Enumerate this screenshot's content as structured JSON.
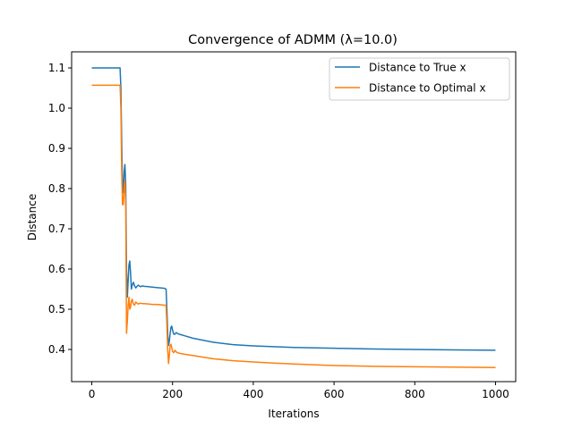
{
  "chart_data": {
    "type": "line",
    "title": "Convergence of ADMM (λ=10.0)",
    "xlabel": "Iterations",
    "ylabel": "Distance",
    "xlim": [
      -50,
      1050
    ],
    "ylim": [
      0.32,
      1.14
    ],
    "xticks": [
      0,
      200,
      400,
      600,
      800,
      1000
    ],
    "xtick_labels": [
      "0",
      "200",
      "400",
      "600",
      "800",
      "1000"
    ],
    "yticks": [
      0.4,
      0.5,
      0.6,
      0.7,
      0.8,
      0.9,
      1.0,
      1.1
    ],
    "ytick_labels": [
      "0.4",
      "0.5",
      "0.6",
      "0.7",
      "0.8",
      "0.9",
      "1.0",
      "1.1"
    ],
    "grid": false,
    "legend_position": "top-right",
    "series": [
      {
        "name": "Distance to True x",
        "color": "#1f77b4",
        "x": [
          0,
          70,
          72,
          74,
          76,
          78,
          80,
          82,
          84,
          86,
          88,
          90,
          92,
          94,
          96,
          98,
          100,
          103,
          106,
          109,
          112,
          115,
          120,
          125,
          130,
          140,
          150,
          160,
          170,
          180,
          184,
          186,
          188,
          190,
          192,
          194,
          196,
          198,
          200,
          203,
          206,
          209,
          212,
          216,
          220,
          230,
          250,
          300,
          350,
          400,
          450,
          500,
          600,
          700,
          800,
          900,
          1000
        ],
        "y": [
          1.1,
          1.1,
          1.05,
          0.92,
          0.81,
          0.79,
          0.84,
          0.86,
          0.81,
          0.6,
          0.53,
          0.57,
          0.61,
          0.62,
          0.59,
          0.55,
          0.56,
          0.567,
          0.558,
          0.553,
          0.557,
          0.56,
          0.556,
          0.558,
          0.557,
          0.556,
          0.555,
          0.554,
          0.553,
          0.552,
          0.55,
          0.5,
          0.44,
          0.41,
          0.42,
          0.44,
          0.455,
          0.458,
          0.448,
          0.438,
          0.438,
          0.442,
          0.44,
          0.438,
          0.437,
          0.434,
          0.428,
          0.418,
          0.412,
          0.409,
          0.407,
          0.405,
          0.403,
          0.401,
          0.4,
          0.399,
          0.398
        ]
      },
      {
        "name": "Distance to Optimal x",
        "color": "#ff7f0e",
        "x": [
          0,
          70,
          72,
          74,
          76,
          78,
          80,
          82,
          84,
          86,
          88,
          90,
          92,
          94,
          96,
          98,
          100,
          103,
          106,
          109,
          112,
          115,
          120,
          125,
          130,
          140,
          150,
          160,
          170,
          180,
          184,
          186,
          188,
          190,
          192,
          194,
          196,
          198,
          200,
          203,
          206,
          209,
          212,
          216,
          220,
          230,
          250,
          300,
          350,
          400,
          450,
          500,
          600,
          700,
          800,
          900,
          1000
        ],
        "y": [
          1.057,
          1.057,
          1.0,
          0.85,
          0.76,
          0.76,
          0.8,
          0.82,
          0.76,
          0.44,
          0.47,
          0.51,
          0.53,
          0.5,
          0.505,
          0.52,
          0.525,
          0.513,
          0.51,
          0.518,
          0.515,
          0.513,
          0.515,
          0.514,
          0.514,
          0.513,
          0.512,
          0.512,
          0.511,
          0.51,
          0.51,
          0.46,
          0.4,
          0.365,
          0.385,
          0.41,
          0.413,
          0.405,
          0.395,
          0.392,
          0.398,
          0.394,
          0.392,
          0.391,
          0.39,
          0.388,
          0.385,
          0.377,
          0.372,
          0.369,
          0.366,
          0.364,
          0.36,
          0.358,
          0.357,
          0.356,
          0.355
        ]
      }
    ]
  }
}
